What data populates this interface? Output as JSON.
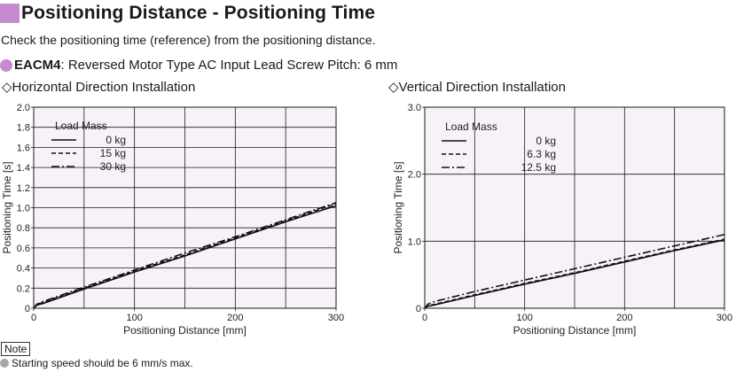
{
  "header": {
    "title": "Positioning Distance - Positioning Time",
    "description": "Check the positioning time (reference) from the positioning distance.",
    "model_name": "EACM4",
    "model_desc": ": Reversed Motor Type AC Input Lead Screw Pitch: 6 mm",
    "accent_color": "#c58ad0"
  },
  "chart_data": [
    {
      "type": "line",
      "subtitle": "◇Horizontal Direction Installation",
      "xlabel": "Positioning Distance [mm]",
      "ylabel": "Positioning Time [s]",
      "xlim": [
        0,
        300
      ],
      "ylim": [
        0,
        2.0
      ],
      "x_ticks": [
        0,
        100,
        200,
        300
      ],
      "x_tick_labels": [
        "0",
        "100",
        "200",
        "300"
      ],
      "y_ticks": [
        0,
        0.2,
        0.4,
        0.6,
        0.8,
        1.0,
        1.2,
        1.4,
        1.6,
        1.8,
        2.0
      ],
      "y_tick_labels": [
        "0",
        "0.2",
        "0.4",
        "0.6",
        "0.8",
        "1.0",
        "1.2",
        "1.4",
        "1.6",
        "1.8",
        "2.0"
      ],
      "grid": true,
      "legend_title": "Load Mass",
      "legend_placement": "top-left",
      "series": [
        {
          "name": "0 kg",
          "style": "solid",
          "x": [
            0,
            3,
            10,
            50,
            100,
            150,
            200,
            250,
            300
          ],
          "y": [
            0,
            0.03,
            0.05,
            0.19,
            0.36,
            0.52,
            0.69,
            0.86,
            1.02
          ]
        },
        {
          "name": "15 kg",
          "style": "dashed",
          "x": [
            0,
            3,
            10,
            50,
            100,
            150,
            200,
            250,
            300
          ],
          "y": [
            0,
            0.035,
            0.06,
            0.2,
            0.37,
            0.53,
            0.7,
            0.87,
            1.04
          ]
        },
        {
          "name": "30 kg",
          "style": "dashdot",
          "x": [
            0,
            3,
            10,
            50,
            100,
            150,
            200,
            250,
            300
          ],
          "y": [
            0,
            0.04,
            0.07,
            0.21,
            0.38,
            0.55,
            0.71,
            0.88,
            1.05
          ]
        }
      ]
    },
    {
      "type": "line",
      "subtitle": "◇Vertical Direction Installation",
      "xlabel": "Positioning Distance [mm]",
      "ylabel": "Positioning Time [s]",
      "xlim": [
        0,
        300
      ],
      "ylim": [
        0,
        3.0
      ],
      "x_ticks": [
        0,
        100,
        200,
        300
      ],
      "x_tick_labels": [
        "0",
        "100",
        "200",
        "300"
      ],
      "y_ticks": [
        0,
        1.0,
        2.0,
        3.0
      ],
      "y_tick_labels": [
        "0",
        "1.0",
        "2.0",
        "3.0"
      ],
      "grid": true,
      "legend_title": "Load Mass",
      "legend_placement": "top-left",
      "series": [
        {
          "name": "0 kg",
          "style": "solid",
          "x": [
            0,
            3,
            10,
            50,
            100,
            150,
            200,
            250,
            300
          ],
          "y": [
            0,
            0.03,
            0.05,
            0.19,
            0.36,
            0.52,
            0.69,
            0.86,
            1.02
          ]
        },
        {
          "name": "6.3 kg",
          "style": "dashed",
          "x": [
            0,
            3,
            10,
            50,
            100,
            150,
            200,
            250,
            300
          ],
          "y": [
            0,
            0.035,
            0.06,
            0.2,
            0.37,
            0.53,
            0.7,
            0.87,
            1.03
          ]
        },
        {
          "name": "12.5 kg",
          "style": "dashdot",
          "x": [
            0,
            3,
            10,
            50,
            100,
            150,
            200,
            250,
            300
          ],
          "y": [
            0,
            0.06,
            0.1,
            0.25,
            0.42,
            0.59,
            0.76,
            0.93,
            1.1
          ]
        }
      ]
    }
  ],
  "note": {
    "label": "Note",
    "text": "Starting speed should be 6 mm/s max.",
    "bullet_color": "#a8a8a8"
  },
  "colors": {
    "plot_background": "#f7f2f7",
    "grid": "#1a1a1a",
    "line": "#111111"
  }
}
